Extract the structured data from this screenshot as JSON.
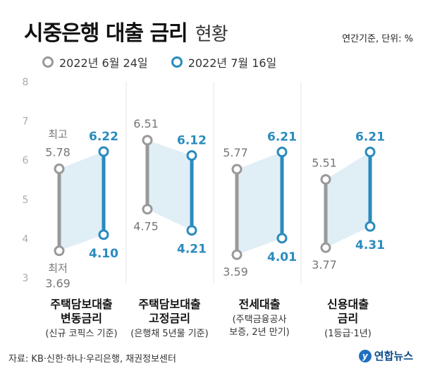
{
  "header": {
    "title": "시중은행 대출 금리",
    "subtitle": "현황",
    "unit": "연간기준, 단위: %"
  },
  "footer": {
    "source": "자료: KB·신한·하나·우리은행, 채권정보센터",
    "logo_text": "연합뉴스"
  },
  "colors": {
    "old": "#999999",
    "new": "#2a8bbd",
    "band": "#d6e8f3"
  },
  "chart_data": {
    "type": "dumbbell",
    "ylim": [
      3,
      8
    ],
    "yticks": [
      "3",
      "4",
      "5",
      "6",
      "7",
      "8"
    ],
    "legend": [
      "2022년 6월 24일",
      "2022년 7월 16일"
    ],
    "annotations": {
      "max": "최고",
      "min": "최저"
    },
    "groups": [
      {
        "title": [
          "주택담보대출",
          "변동금리"
        ],
        "note": [
          "(신규 코픽스 기준)"
        ],
        "old": {
          "max": 5.78,
          "min": 3.69
        },
        "new": {
          "max": 6.22,
          "min": 4.1
        }
      },
      {
        "title": [
          "주택담보대출",
          "고정금리"
        ],
        "note": [
          "(은행채 5년물 기준)"
        ],
        "old": {
          "max": 6.51,
          "min": 4.75
        },
        "new": {
          "max": 6.12,
          "min": 4.21
        }
      },
      {
        "title": [
          "전세대출"
        ],
        "note": [
          "(주택금융공사",
          "보증, 2년 만기)"
        ],
        "old": {
          "max": 5.77,
          "min": 3.59
        },
        "new": {
          "max": 6.21,
          "min": 4.01
        }
      },
      {
        "title": [
          "신용대출",
          "금리"
        ],
        "note": [
          "(1등급·1년)"
        ],
        "old": {
          "max": 5.51,
          "min": 3.77
        },
        "new": {
          "max": 6.21,
          "min": 4.31
        }
      }
    ]
  }
}
